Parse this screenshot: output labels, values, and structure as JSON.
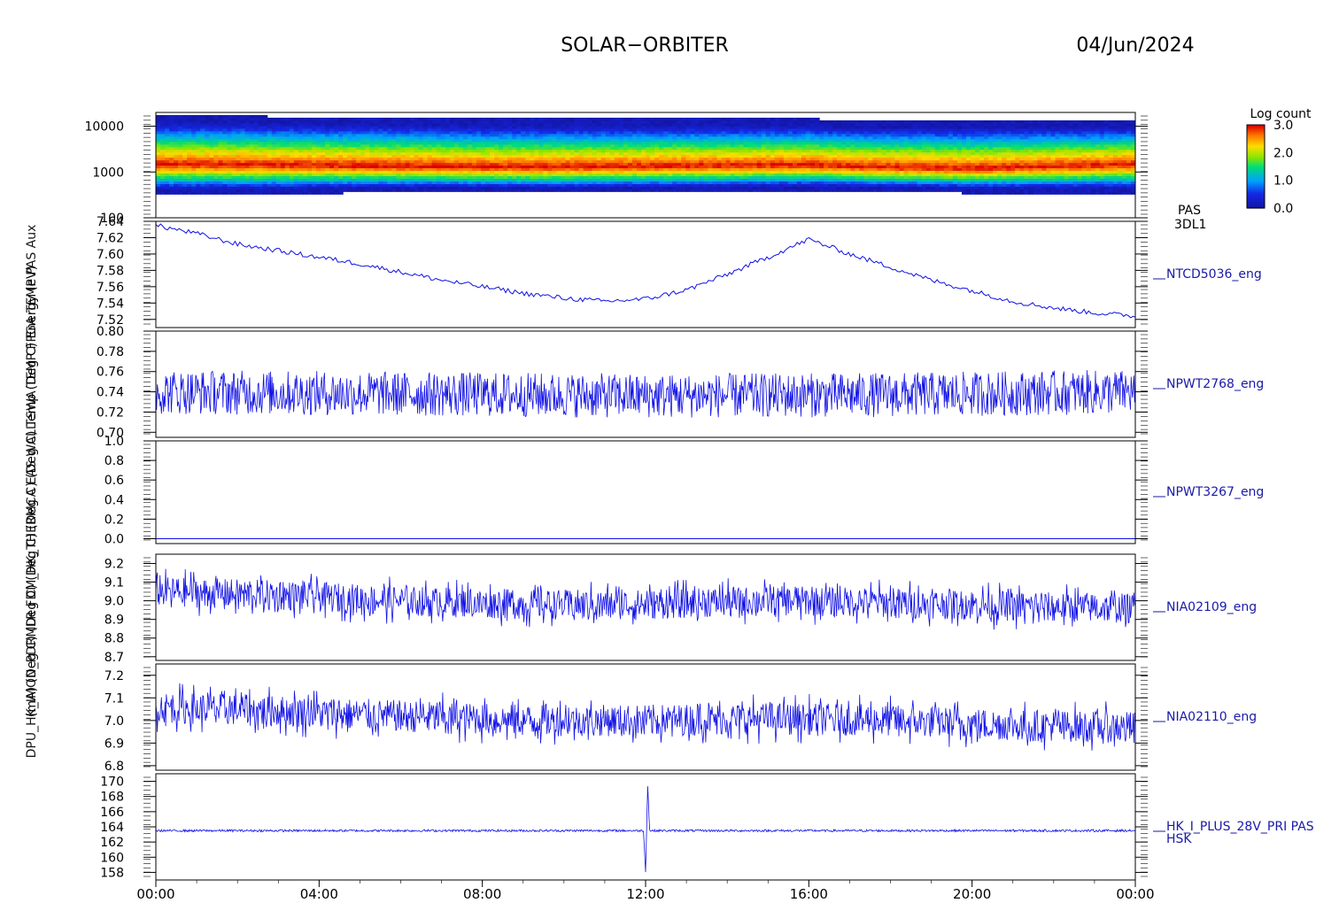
{
  "header": {
    "mission": "SOLAR−ORBITER",
    "date": "04/Jun/2024"
  },
  "colorbar": {
    "title": "Log count",
    "ticks": [
      "3.0",
      "2.0",
      "1.0",
      "0.0"
    ],
    "range": [
      0.0,
      3.0
    ]
  },
  "side_label": "(mA)    (Deg C)    (Deg C)    (Deg C)    (Deg C)    (Deg C)    Temp (Deg C)   Energy (eV)",
  "side_label_overlay": "DPU_HK_IMON_PDRMLR   FDM_HK_THERMCA   EAS WALL   SWA TEMP   FPGA TEMP   PAS   Aux",
  "chart_data": [
    {
      "type": "heatmap",
      "name": "PAS",
      "right_label": "PAS",
      "right_label2": "3DL1",
      "ylabel": "Energy (eV)",
      "yscale": "log",
      "ylim": [
        100,
        20000
      ],
      "yticks": [
        "10000",
        "1000",
        "100"
      ],
      "ytick_values": [
        10000,
        1000,
        100
      ],
      "colorscale": "rainbow",
      "zlabel": "Log count",
      "bands": [
        {
          "t": 0.0,
          "peak_eV": 1500,
          "low_eV": 400,
          "high_eV": 15000
        },
        {
          "t": 2.0,
          "peak_eV": 1450,
          "low_eV": 400,
          "high_eV": 15000
        },
        {
          "t": 4.0,
          "peak_eV": 1400,
          "low_eV": 420,
          "high_eV": 14000
        },
        {
          "t": 6.0,
          "peak_eV": 1350,
          "low_eV": 430,
          "high_eV": 14000
        },
        {
          "t": 8.0,
          "peak_eV": 1300,
          "low_eV": 430,
          "high_eV": 13000
        },
        {
          "t": 10.0,
          "peak_eV": 1300,
          "low_eV": 430,
          "high_eV": 13000
        },
        {
          "t": 12.0,
          "peak_eV": 1350,
          "low_eV": 440,
          "high_eV": 13000
        },
        {
          "t": 14.0,
          "peak_eV": 1400,
          "low_eV": 450,
          "high_eV": 13000
        },
        {
          "t": 16.0,
          "peak_eV": 1450,
          "low_eV": 460,
          "high_eV": 13000
        },
        {
          "t": 17.5,
          "peak_eV": 1300,
          "low_eV": 450,
          "high_eV": 12000
        },
        {
          "t": 20.0,
          "peak_eV": 1200,
          "low_eV": 420,
          "high_eV": 12000
        },
        {
          "t": 24.0,
          "peak_eV": 1500,
          "low_eV": 420,
          "high_eV": 12000
        }
      ]
    },
    {
      "type": "line",
      "name": "NTCD5036_eng",
      "right_label": "NTCD5036_eng",
      "ylim": [
        7.51,
        7.64
      ],
      "yticks": [
        "7.64",
        "7.62",
        "7.60",
        "7.58",
        "7.56",
        "7.54",
        "7.52"
      ],
      "ytick_values": [
        7.64,
        7.62,
        7.6,
        7.58,
        7.56,
        7.54,
        7.52
      ],
      "x": [
        0,
        1,
        2,
        3,
        4,
        5,
        6,
        7,
        8,
        9,
        10,
        11,
        12,
        13,
        14,
        15,
        16,
        17,
        18,
        19,
        20,
        21,
        22,
        23,
        24
      ],
      "y": [
        7.635,
        7.625,
        7.612,
        7.604,
        7.596,
        7.588,
        7.578,
        7.568,
        7.56,
        7.552,
        7.546,
        7.542,
        7.545,
        7.556,
        7.575,
        7.596,
        7.618,
        7.6,
        7.584,
        7.568,
        7.555,
        7.542,
        7.534,
        7.528,
        7.524
      ],
      "noise": 0.003
    },
    {
      "type": "line",
      "name": "NPWT2768_eng",
      "right_label": "NPWT2768_eng",
      "ylim": [
        0.695,
        0.8
      ],
      "yticks": [
        "0.80",
        "0.78",
        "0.76",
        "0.74",
        "0.72",
        "0.70"
      ],
      "ytick_values": [
        0.8,
        0.78,
        0.76,
        0.74,
        0.72,
        0.7
      ],
      "x": [
        0,
        6,
        12,
        18,
        24
      ],
      "y": [
        0.74,
        0.738,
        0.736,
        0.737,
        0.74
      ],
      "noise": 0.022
    },
    {
      "type": "line",
      "name": "NPWT3267_eng",
      "right_label": "NPWT3267_eng",
      "ylim": [
        -0.05,
        1.0
      ],
      "yticks": [
        "1.0",
        "0.8",
        "0.6",
        "0.4",
        "0.2",
        "0.0"
      ],
      "ytick_values": [
        1.0,
        0.8,
        0.6,
        0.4,
        0.2,
        0.0
      ],
      "x": [
        0,
        24
      ],
      "y": [
        0.0,
        0.0
      ],
      "noise": 0.0
    },
    {
      "type": "line",
      "name": "NIA02109_eng",
      "right_label": "NIA02109_eng",
      "ylim": [
        8.68,
        9.25
      ],
      "yticks": [
        "9.2",
        "9.1",
        "9.0",
        "8.9",
        "8.8",
        "8.7"
      ],
      "ytick_values": [
        9.2,
        9.1,
        9.0,
        8.9,
        8.8,
        8.7
      ],
      "x": [
        0,
        3,
        6,
        9,
        12,
        15,
        18,
        21,
        24
      ],
      "y": [
        9.05,
        9.03,
        9.0,
        8.98,
        8.98,
        9.0,
        8.99,
        8.97,
        8.96
      ],
      "noise": 0.08
    },
    {
      "type": "line",
      "name": "NIA02110_eng",
      "right_label": "NIA02110_eng",
      "ylim": [
        6.78,
        7.25
      ],
      "yticks": [
        "7.2",
        "7.1",
        "7.0",
        "6.9",
        "6.8"
      ],
      "ytick_values": [
        7.2,
        7.1,
        7.0,
        6.9,
        6.8
      ],
      "x": [
        0,
        3,
        6,
        9,
        12,
        15,
        18,
        21,
        24
      ],
      "y": [
        7.06,
        7.04,
        7.02,
        7.0,
        7.0,
        7.01,
        7.0,
        6.98,
        6.97
      ],
      "noise": 0.07
    },
    {
      "type": "line",
      "name": "HK_I_PLUS_28V_PRI PAS HSK",
      "right_label": "HK_I_PLUS_28V_PRI PAS",
      "right_label2": "HSK",
      "ylim": [
        157,
        171
      ],
      "yticks": [
        "170",
        "168",
        "166",
        "164",
        "162",
        "160",
        "158"
      ],
      "ytick_values": [
        170,
        168,
        166,
        164,
        162,
        160,
        158
      ],
      "x": [
        0,
        11.95,
        12.0,
        12.05,
        12.1,
        24
      ],
      "y": [
        163.5,
        163.5,
        158.0,
        169.5,
        163.5,
        163.5
      ],
      "noise": 0.15
    }
  ],
  "xaxis": {
    "ticks": [
      "00:00",
      "04:00",
      "08:00",
      "12:00",
      "16:00",
      "20:00",
      "00:00"
    ],
    "tick_hours": [
      0,
      4,
      8,
      12,
      16,
      20,
      24
    ]
  }
}
